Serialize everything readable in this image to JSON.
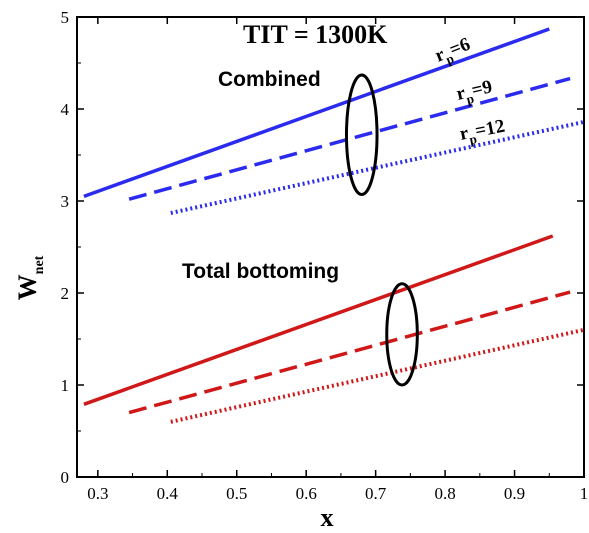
{
  "chart_data": {
    "type": "line",
    "title": "TIT = 1300K",
    "xlabel": "x",
    "ylabel": {
      "main": "W",
      "sub": "net"
    },
    "xlim": [
      0.27,
      1.0
    ],
    "ylim": [
      0,
      5
    ],
    "xticks": [
      "0.3",
      "0.4",
      "0.5",
      "0.6",
      "0.7",
      "0.8",
      "0.9",
      "1"
    ],
    "yticks": [
      "0",
      "1",
      "2",
      "3",
      "4",
      "5"
    ],
    "grid": false,
    "colors": {
      "combined": "#2b2bf0",
      "bottoming": "#d01818"
    },
    "groups": [
      {
        "name": "Combined",
        "ellipse_center": [
          0.68,
          3.72
        ],
        "ellipse_radii": [
          0.022,
          0.65
        ]
      },
      {
        "name": "Total bottoming",
        "ellipse_center": [
          0.738,
          1.55
        ],
        "ellipse_radii": [
          0.022,
          0.55
        ]
      }
    ],
    "rp_labels": [
      {
        "main": "r",
        "sub": "p",
        "rest": "=6"
      },
      {
        "main": "r",
        "sub": "p",
        "rest": "=9"
      },
      {
        "main": "r",
        "sub": "p",
        "rest": "=12"
      }
    ],
    "series": [
      {
        "group": "Combined",
        "rp": 6,
        "style": "solid",
        "x": [
          0.28,
          0.95
        ],
        "y": [
          3.05,
          4.87
        ]
      },
      {
        "group": "Combined",
        "rp": 9,
        "style": "dashed",
        "x": [
          0.345,
          0.98
        ],
        "y": [
          3.02,
          4.33
        ]
      },
      {
        "group": "Combined",
        "rp": 12,
        "style": "dotted",
        "x": [
          0.405,
          1.0
        ],
        "y": [
          2.87,
          3.86
        ]
      },
      {
        "group": "Total bottoming",
        "rp": 6,
        "style": "solid",
        "x": [
          0.28,
          0.955
        ],
        "y": [
          0.79,
          2.62
        ]
      },
      {
        "group": "Total bottoming",
        "rp": 9,
        "style": "dashed",
        "x": [
          0.345,
          0.98
        ],
        "y": [
          0.7,
          2.01
        ]
      },
      {
        "group": "Total bottoming",
        "rp": 12,
        "style": "dotted",
        "x": [
          0.405,
          1.0
        ],
        "y": [
          0.6,
          1.6
        ]
      }
    ]
  }
}
